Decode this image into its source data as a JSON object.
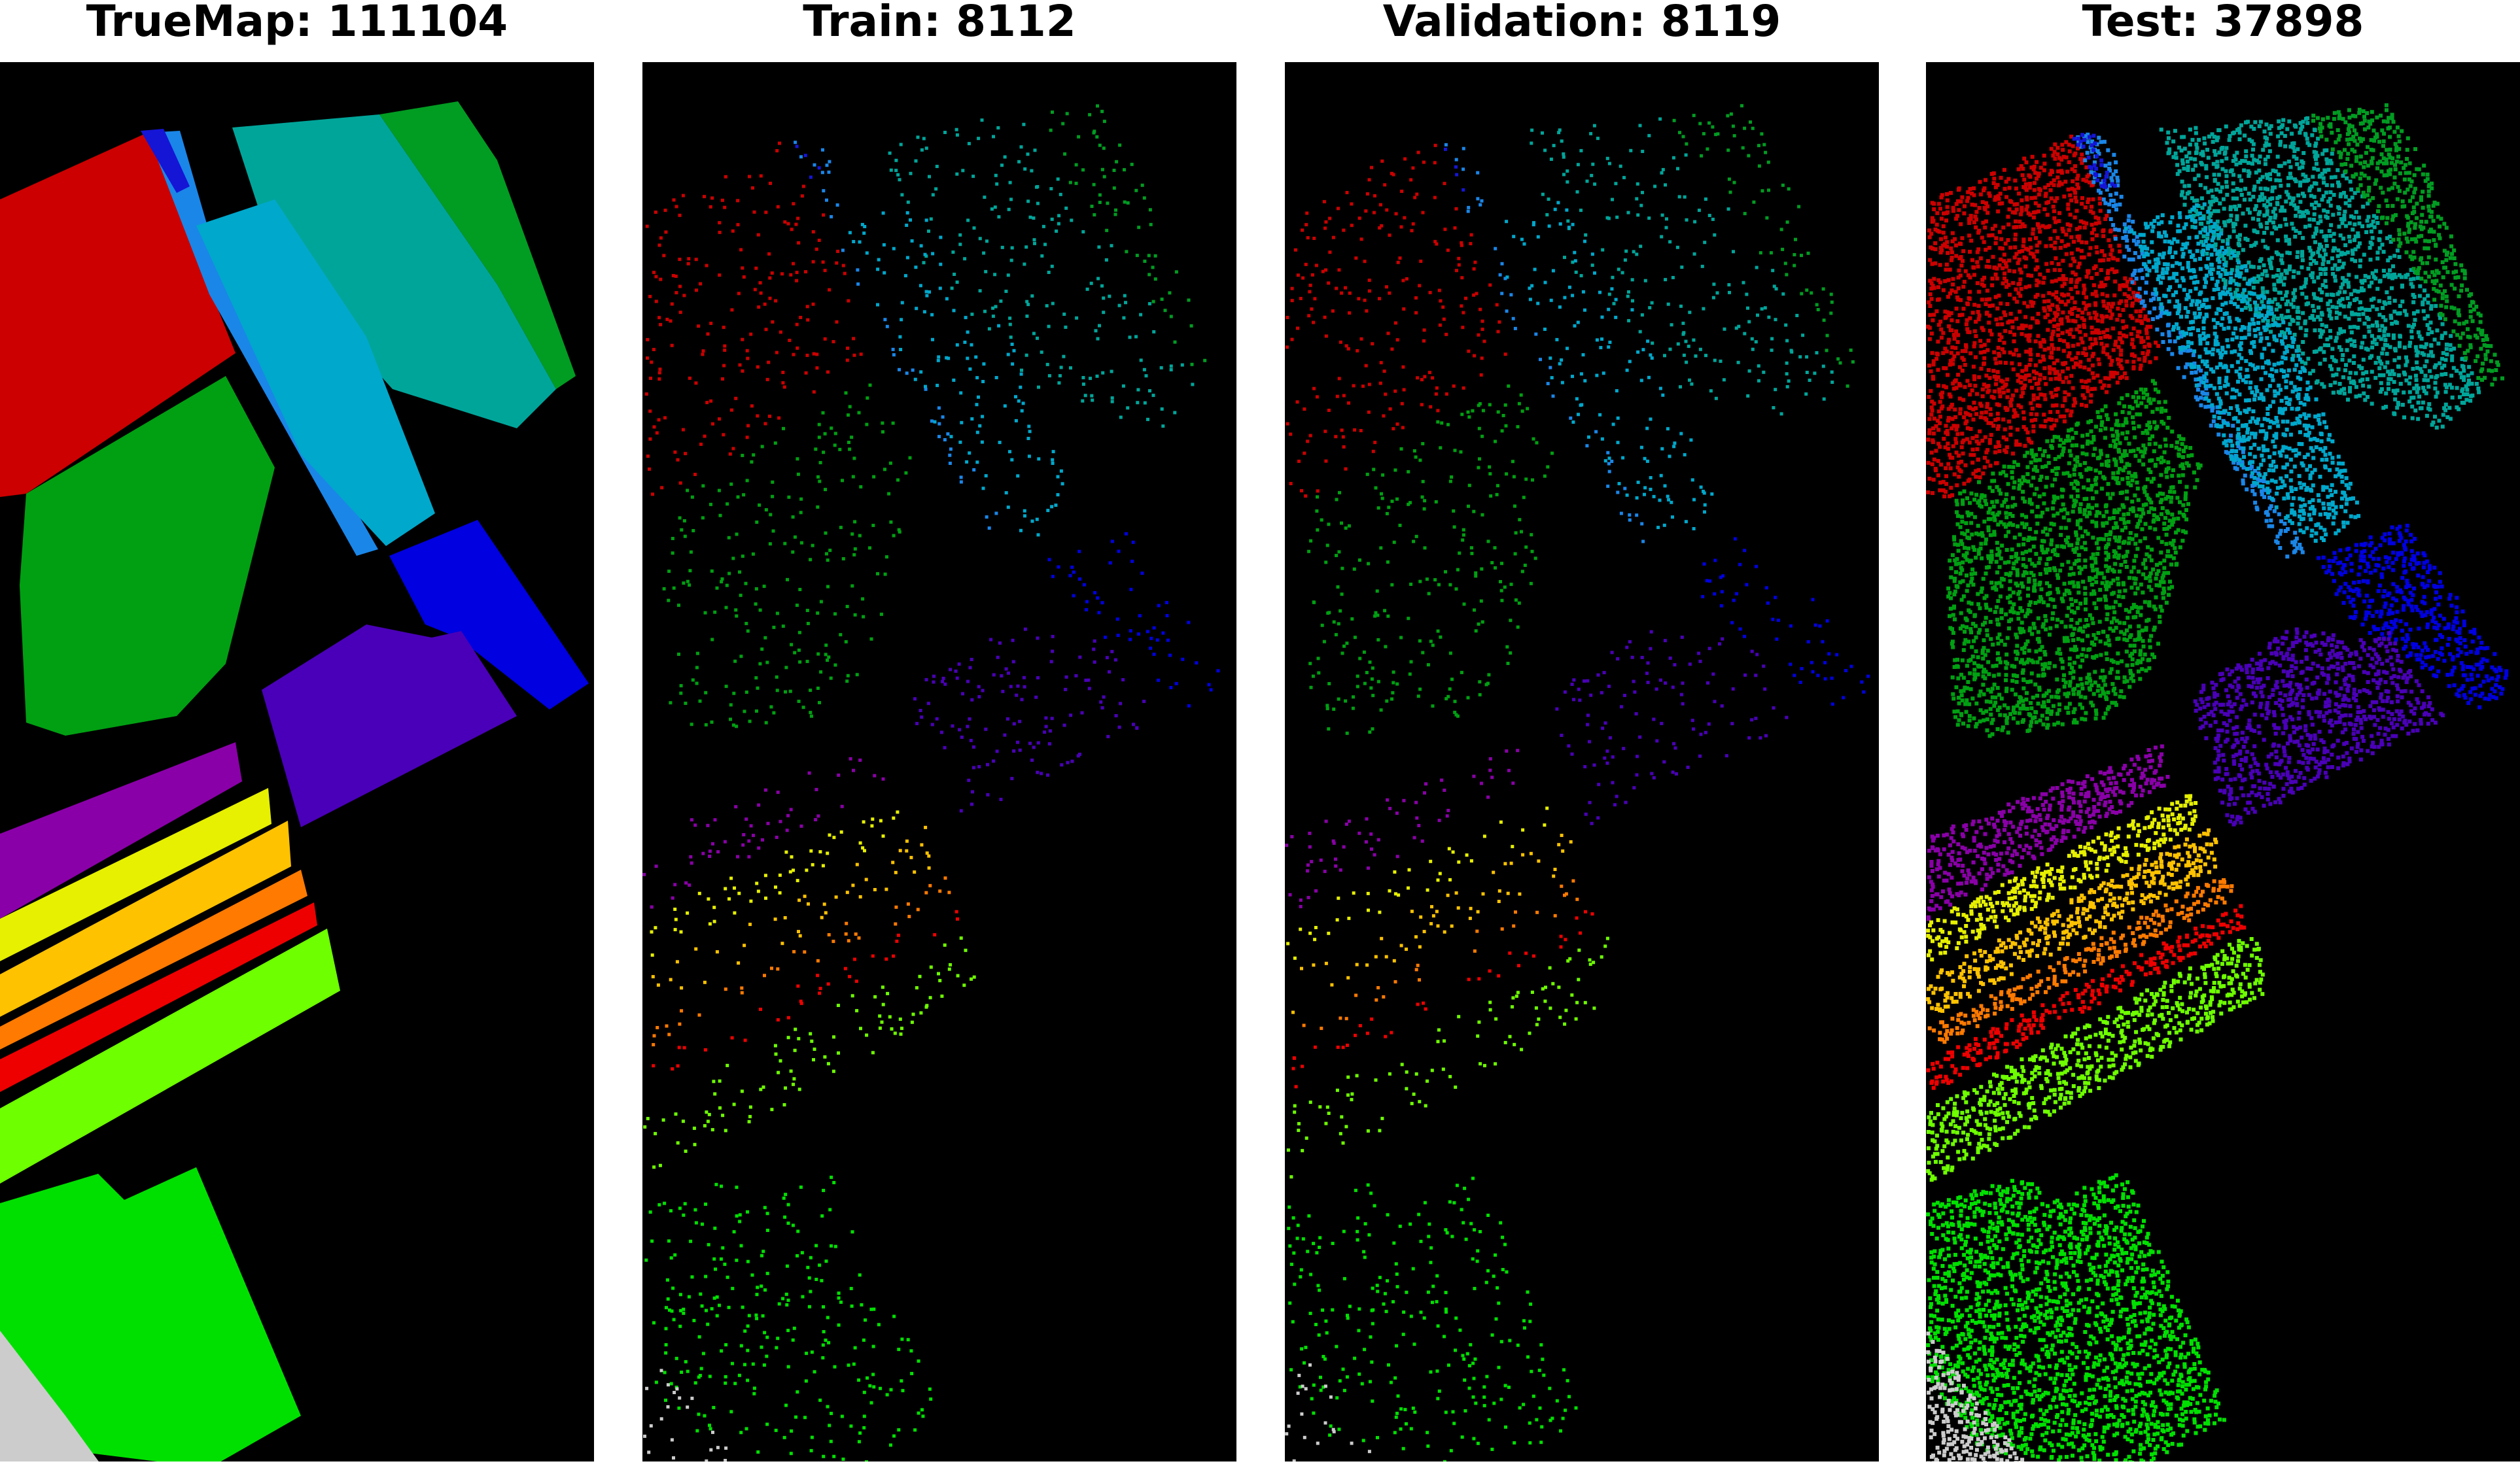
{
  "panels": [
    {
      "title": "TrueMap: 111104",
      "style": "solid"
    },
    {
      "title": "Train: 8112",
      "style": "sparse"
    },
    {
      "title": "Validation: 8119",
      "style": "sparse"
    },
    {
      "title": "Test: 37898",
      "style": "dense"
    }
  ],
  "background_color": "#000000",
  "regions": [
    {
      "class": "red-field",
      "color": "#cc0000"
    },
    {
      "class": "blue-strip",
      "color": "#1a86e8"
    },
    {
      "class": "dark-blue-strip",
      "color": "#1515d6"
    },
    {
      "class": "teal-field",
      "color": "#00a59a"
    },
    {
      "class": "cyan-field",
      "color": "#00a8cc"
    },
    {
      "class": "green-field",
      "color": "#00a012"
    },
    {
      "class": "green-field-2",
      "color": "#019c22"
    },
    {
      "class": "blue-field",
      "color": "#0000e0"
    },
    {
      "class": "indigo-field",
      "color": "#4a00b8"
    },
    {
      "class": "purple-field",
      "color": "#8a00a8"
    },
    {
      "class": "yellow-band",
      "color": "#e6f000"
    },
    {
      "class": "gold-band",
      "color": "#ffc200"
    },
    {
      "class": "orange-band",
      "color": "#ff7a00"
    },
    {
      "class": "red-band",
      "color": "#ee0000"
    },
    {
      "class": "lime-field",
      "color": "#6eff00"
    },
    {
      "class": "bright-green-field",
      "color": "#00e000"
    },
    {
      "class": "gray-field",
      "color": "#cccccc"
    }
  ]
}
